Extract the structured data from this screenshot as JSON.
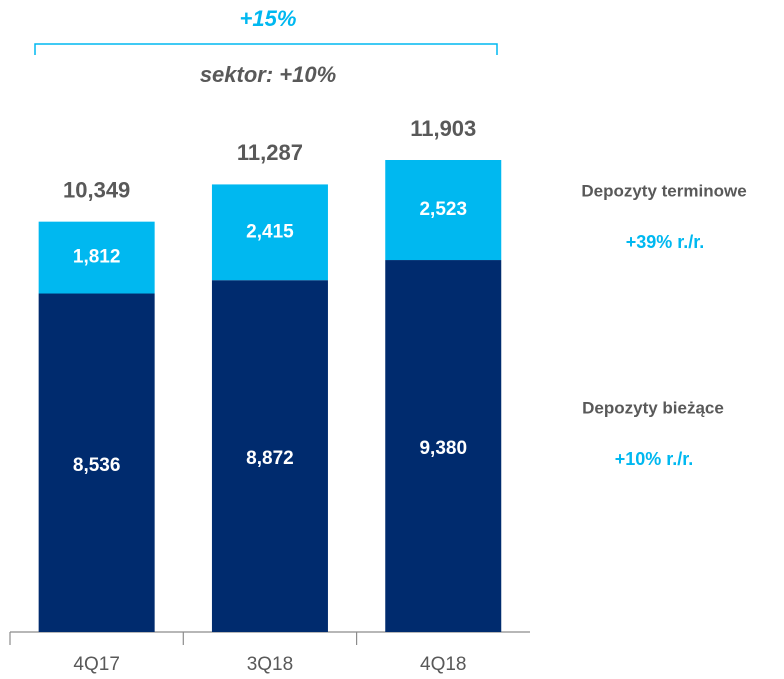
{
  "chart_data": {
    "type": "stacked_bar",
    "categories": [
      "4Q17",
      "3Q18",
      "4Q18"
    ],
    "series": [
      {
        "name": "Depozyty bieżące",
        "color": "#002b6e",
        "values": [
          8536,
          8872,
          9380
        ],
        "value_labels": [
          "8,536",
          "8,872",
          "9,380"
        ],
        "growth": "+10% r./r."
      },
      {
        "name": "Depozyty terminowe",
        "color": "#00b8f0",
        "values": [
          1812,
          2415,
          2523
        ],
        "value_labels": [
          "1,812",
          "2,415",
          "2,523"
        ],
        "growth": "+39% r./r."
      }
    ],
    "totals": [
      10349,
      11287,
      11903
    ],
    "total_labels": [
      "10,349",
      "11,287",
      "11,903"
    ],
    "bracket_label": "+15%",
    "bracket_sublabel": "sektor: +10%"
  }
}
